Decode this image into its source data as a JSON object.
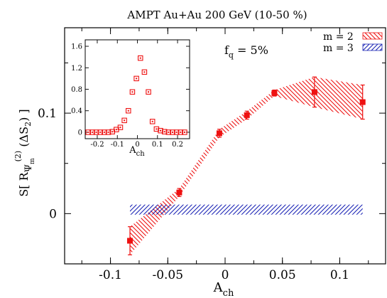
{
  "colors": {
    "red": "#ee1111",
    "blue": "#1b25b5",
    "axis": "#000000"
  },
  "chart_data": [
    {
      "type": "scatter",
      "title": "AMPT Au+Au 200 GeV (10-50 %)",
      "annotation": "f",
      "annotation_sub": "q",
      "annotation_rest": " = 5%",
      "xlabel": "A",
      "xlabel_sub": "ch",
      "ylabel_parts": [
        "S[ R",
        "Ψ",
        "m",
        "(2)",
        " (ΔS",
        "2",
        ")",
        " ]"
      ],
      "xlim": [
        -0.14,
        0.14
      ],
      "ylim": [
        -0.05,
        0.185
      ],
      "xticks": [
        -0.1,
        -0.05,
        0,
        0.05,
        0.1
      ],
      "xtick_labels": [
        "-0.1",
        "-0.05",
        "0",
        "0.05",
        "0.1"
      ],
      "yticks": [
        0,
        0.1
      ],
      "ytick_labels": [
        "0",
        "0.1"
      ],
      "legend_position": "top-right",
      "series": [
        {
          "name": "m = 2",
          "pattern": "hatch-down",
          "color": "#ee1111",
          "points": [
            {
              "x": -0.083,
              "y": -0.027,
              "err": 0.014
            },
            {
              "x": -0.04,
              "y": 0.021,
              "err": 0.004
            },
            {
              "x": -0.005,
              "y": 0.08,
              "err": 0.004
            },
            {
              "x": 0.019,
              "y": 0.098,
              "err": 0.004
            },
            {
              "x": 0.043,
              "y": 0.12,
              "err": 0.003
            },
            {
              "x": 0.078,
              "y": 0.121,
              "err": 0.015
            },
            {
              "x": 0.12,
              "y": 0.111,
              "err": 0.017
            }
          ],
          "band_lower": [
            -0.041,
            0.017,
            0.076,
            0.094,
            0.117,
            0.106,
            0.094
          ],
          "band_upper": [
            -0.013,
            0.025,
            0.084,
            0.102,
            0.123,
            0.136,
            0.128
          ]
        },
        {
          "name": "m = 3",
          "pattern": "hatch-up",
          "color": "#1b25b5",
          "band_x": [
            -0.083,
            0.12
          ],
          "band_lower": [
            -0.001,
            -0.001
          ],
          "band_upper": [
            0.009,
            0.009
          ]
        }
      ]
    },
    {
      "type": "scatter",
      "inset": true,
      "xlabel": "A",
      "xlabel_sub": "ch",
      "xlim": [
        -0.26,
        0.26
      ],
      "ylim": [
        -0.12,
        1.72
      ],
      "xticks": [
        -0.2,
        -0.1,
        0,
        0.1,
        0.2
      ],
      "xtick_labels": [
        "-0.2",
        "-0.1",
        "0",
        "0.1",
        "0.2"
      ],
      "yticks": [
        0,
        0.4,
        0.8,
        1.2,
        1.6
      ],
      "ytick_labels": [
        "0",
        "0.4",
        "0.8",
        "1.2",
        "1.6"
      ],
      "series": [
        {
          "marker": "open-square",
          "color": "#ee1111",
          "x": [
            -0.245,
            -0.225,
            -0.205,
            -0.185,
            -0.165,
            -0.145,
            -0.125,
            -0.105,
            -0.085,
            -0.065,
            -0.045,
            -0.025,
            -0.005,
            0.015,
            0.035,
            0.055,
            0.075,
            0.095,
            0.115,
            0.135,
            0.155,
            0.175,
            0.195,
            0.215,
            0.235
          ],
          "y": [
            0.0,
            0.0,
            0.0,
            0.0,
            0.0,
            0.0,
            0.01,
            0.05,
            0.09,
            0.22,
            0.4,
            0.75,
            1.0,
            1.38,
            1.12,
            0.75,
            0.2,
            0.06,
            0.03,
            0.01,
            0.0,
            0.0,
            0.0,
            0.0,
            0.0
          ]
        }
      ]
    }
  ]
}
